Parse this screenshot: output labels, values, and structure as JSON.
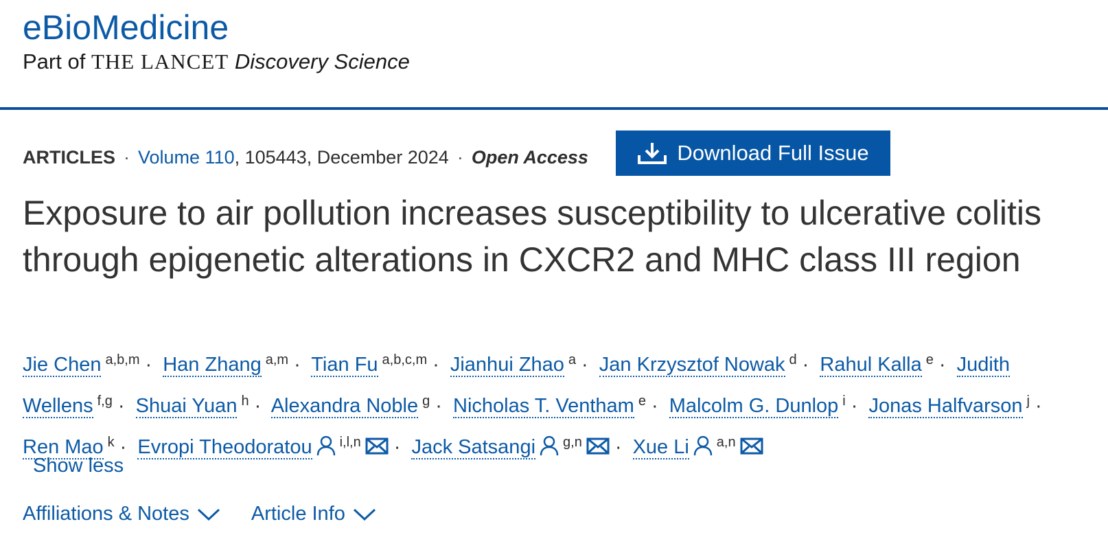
{
  "header": {
    "journal": "eBioMedicine",
    "tagline_prefix": "Part of",
    "tagline_lancet": "THE LANCET",
    "tagline_suffix": "Discovery Science"
  },
  "meta": {
    "section": "ARTICLES",
    "separator": "·",
    "volume": "Volume 110",
    "details": ", 105443, December 2024",
    "access": "Open Access",
    "download": "Download Full Issue"
  },
  "title": "Exposure to air pollution increases susceptibility to ulcerative colitis through epigenetic alterations in CXCR2 and MHC class III region",
  "authors": [
    {
      "name": "Jie Chen",
      "affiliations": "a,b,m"
    },
    {
      "name": "Han Zhang",
      "affiliations": "a,m"
    },
    {
      "name": "Tian Fu",
      "affiliations": "a,b,c,m"
    },
    {
      "name": "Jianhui Zhao",
      "affiliations": "a"
    },
    {
      "name": "Jan Krzysztof Nowak",
      "affiliations": "d"
    },
    {
      "name": "Rahul Kalla",
      "affiliations": "e"
    },
    {
      "name": "Judith Wellens",
      "affiliations": "f,g"
    },
    {
      "name": "Shuai Yuan",
      "affiliations": "h"
    },
    {
      "name": "Alexandra Noble",
      "affiliations": "g"
    },
    {
      "name": "Nicholas T. Ventham",
      "affiliations": "e"
    },
    {
      "name": "Malcolm G. Dunlop",
      "affiliations": "i"
    },
    {
      "name": "Jonas Halfvarson",
      "affiliations": "j"
    },
    {
      "name": "Ren Mao",
      "affiliations": "k"
    },
    {
      "name": "Evropi Theodoratou",
      "affiliations": "i,l,n",
      "corresponding": true
    },
    {
      "name": "Jack Satsangi",
      "affiliations": "g,n",
      "corresponding": true
    },
    {
      "name": "Xue Li",
      "affiliations": "a,n",
      "corresponding": true
    }
  ],
  "show_less": "Show less",
  "tabs": [
    "Affiliations & Notes",
    "Article Info"
  ]
}
